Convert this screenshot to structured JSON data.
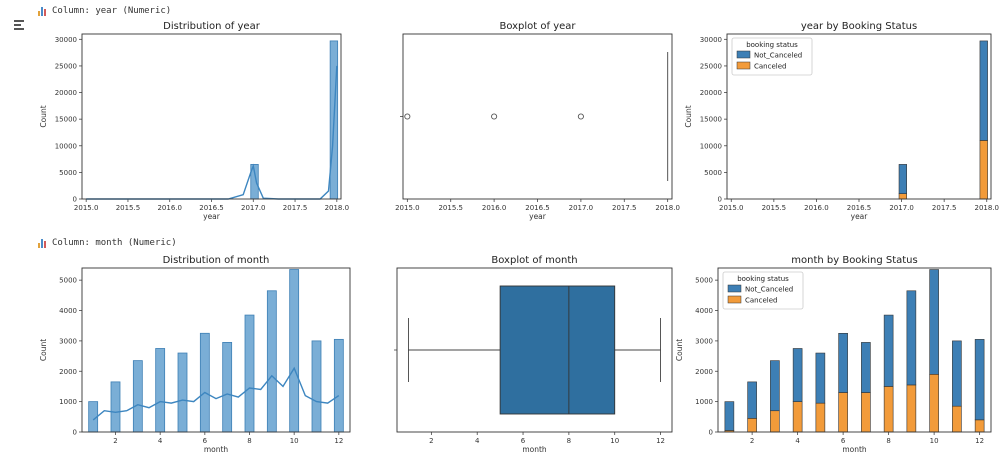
{
  "sections": [
    {
      "header": "Column: year (Numeric)"
    },
    {
      "header": "Column: month (Numeric)"
    }
  ],
  "colors": {
    "blue": "#3d7fb5",
    "hist_blue": "#7aaed6",
    "box_blue": "#2f6f9f",
    "orange": "#f29b3a",
    "kde": "#3d86c0"
  },
  "icons": {
    "header": "bar-chart-icon",
    "sidebar": "expand-output-icon"
  },
  "chart_data": [
    {
      "type": "bar",
      "title": "Distribution of year",
      "xlabel": "year",
      "ylabel": "Count",
      "x_ticks": [
        "2015.0",
        "2015.5",
        "2016.0",
        "2016.5",
        "2017.0",
        "2017.5",
        "2018.0"
      ],
      "y_ticks": [
        "0",
        "5000",
        "10000",
        "15000",
        "20000",
        "25000",
        "30000"
      ],
      "xlim": [
        2014.95,
        2018.05
      ],
      "ylim": [
        0,
        31000
      ],
      "bars": [
        {
          "x0": 2016.97,
          "x1": 2017.06,
          "value": 6500
        },
        {
          "x0": 2017.92,
          "x1": 2018.01,
          "value": 29700
        }
      ],
      "kde": [
        [
          2015.0,
          0
        ],
        [
          2016.7,
          0
        ],
        [
          2016.88,
          800
        ],
        [
          2016.97,
          5000
        ],
        [
          2017.0,
          6200
        ],
        [
          2017.04,
          3000
        ],
        [
          2017.12,
          150
        ],
        [
          2017.3,
          0
        ],
        [
          2017.8,
          0
        ],
        [
          2017.9,
          1500
        ],
        [
          2017.95,
          10000
        ],
        [
          2018.0,
          25000
        ]
      ]
    },
    {
      "type": "boxplot",
      "title": "Boxplot of year",
      "xlabel": "year",
      "x_ticks": [
        "2015.0",
        "2015.5",
        "2016.0",
        "2016.5",
        "2017.0",
        "2017.5",
        "2018.0"
      ],
      "xlim": [
        2014.95,
        2018.05
      ],
      "median": 2018,
      "q1": 2018,
      "q3": 2018,
      "outliers": [
        2015.0,
        2016.0,
        2017.0
      ]
    },
    {
      "type": "bar",
      "title": "year by Booking Status",
      "xlabel": "year",
      "ylabel": "Count",
      "x_ticks": [
        "2015.0",
        "2015.5",
        "2016.0",
        "2016.5",
        "2017.0",
        "2017.5",
        "2018.0"
      ],
      "y_ticks": [
        "0",
        "5000",
        "10000",
        "15000",
        "20000",
        "25000",
        "30000"
      ],
      "xlim": [
        2014.95,
        2018.05
      ],
      "ylim": [
        0,
        31000
      ],
      "legend": {
        "title": "booking status",
        "entries": [
          "Not_Canceled",
          "Canceled"
        ],
        "placement": "top-left"
      },
      "stacked_bars": [
        {
          "x0": 2016.97,
          "x1": 2017.06,
          "canceled": 1000,
          "not_canceled": 5500
        },
        {
          "x0": 2017.92,
          "x1": 2018.01,
          "canceled": 11000,
          "not_canceled": 18700
        }
      ]
    },
    {
      "type": "bar",
      "title": "Distribution of month",
      "xlabel": "month",
      "ylabel": "Count",
      "x_ticks": [
        "2",
        "4",
        "6",
        "8",
        "10",
        "12"
      ],
      "y_ticks": [
        "0",
        "1000",
        "2000",
        "3000",
        "4000",
        "5000"
      ],
      "xlim": [
        0.5,
        12.5
      ],
      "ylim": [
        0,
        5400
      ],
      "categories": [
        1,
        2,
        3,
        4,
        5,
        6,
        7,
        8,
        9,
        10,
        11,
        12
      ],
      "values": [
        1000,
        1650,
        2350,
        2750,
        2600,
        3250,
        2950,
        3850,
        4650,
        5350,
        3000,
        3050
      ],
      "kde": [
        [
          1,
          400
        ],
        [
          1.5,
          700
        ],
        [
          2,
          650
        ],
        [
          2.5,
          700
        ],
        [
          3,
          900
        ],
        [
          3.5,
          800
        ],
        [
          4,
          1000
        ],
        [
          4.5,
          950
        ],
        [
          5,
          1050
        ],
        [
          5.5,
          1000
        ],
        [
          6,
          1300
        ],
        [
          6.5,
          1100
        ],
        [
          7,
          1250
        ],
        [
          7.5,
          1150
        ],
        [
          8,
          1450
        ],
        [
          8.5,
          1400
        ],
        [
          9,
          1850
        ],
        [
          9.5,
          1500
        ],
        [
          10,
          2100
        ],
        [
          10.5,
          1200
        ],
        [
          11,
          1000
        ],
        [
          11.5,
          950
        ],
        [
          12,
          1200
        ]
      ]
    },
    {
      "type": "boxplot",
      "title": "Boxplot of month",
      "xlabel": "month",
      "x_ticks": [
        "2",
        "4",
        "6",
        "8",
        "10",
        "12"
      ],
      "xlim": [
        0.5,
        12.5
      ],
      "whisker_low": 1,
      "q1": 5,
      "median": 8,
      "q3": 10,
      "whisker_high": 12
    },
    {
      "type": "bar",
      "title": "month by Booking Status",
      "xlabel": "month",
      "ylabel": "Count",
      "x_ticks": [
        "2",
        "4",
        "6",
        "8",
        "10",
        "12"
      ],
      "y_ticks": [
        "0",
        "1000",
        "2000",
        "3000",
        "4000",
        "5000"
      ],
      "xlim": [
        0.5,
        12.5
      ],
      "ylim": [
        0,
        5400
      ],
      "legend": {
        "title": "booking status",
        "entries": [
          "Not_Canceled",
          "Canceled"
        ],
        "placement": "top-left"
      },
      "categories": [
        1,
        2,
        3,
        4,
        5,
        6,
        7,
        8,
        9,
        10,
        11,
        12
      ],
      "series": [
        {
          "name": "Not_Canceled",
          "values": [
            950,
            1200,
            1650,
            1750,
            1650,
            1950,
            1650,
            2350,
            3100,
            3450,
            2150,
            2650
          ]
        },
        {
          "name": "Canceled",
          "values": [
            50,
            450,
            700,
            1000,
            950,
            1300,
            1300,
            1500,
            1550,
            1900,
            850,
            400
          ]
        }
      ]
    }
  ]
}
